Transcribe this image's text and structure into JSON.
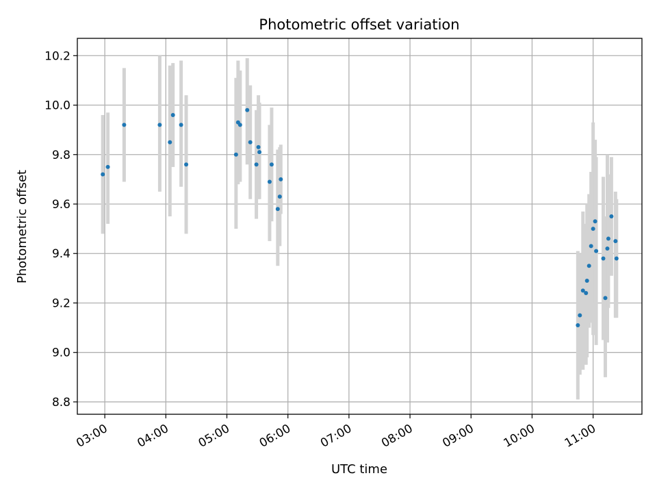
{
  "chart_data": {
    "type": "scatter",
    "title": "Photometric offset variation",
    "xlabel": "UTC time",
    "ylabel": "Photometric offset",
    "xlim": [
      "02:33",
      "11:48"
    ],
    "ylim": [
      8.75,
      10.27
    ],
    "x_ticks": [
      "03:00",
      "04:00",
      "05:00",
      "06:00",
      "07:00",
      "08:00",
      "09:00",
      "10:00",
      "11:00"
    ],
    "y_ticks": [
      8.8,
      9.0,
      9.2,
      9.4,
      9.6,
      9.8,
      10.0,
      10.2
    ],
    "grid": true,
    "marker_color": "#1f77b4",
    "errorbar_color": "#d3d3d3",
    "series": [
      {
        "points": [
          {
            "x": "02:58",
            "y": 9.72,
            "yerr_low": 9.48,
            "yerr_high": 9.96
          },
          {
            "x": "03:03",
            "y": 9.75,
            "yerr_low": 9.52,
            "yerr_high": 9.97
          },
          {
            "x": "03:19",
            "y": 9.92,
            "yerr_low": 9.69,
            "yerr_high": 10.15
          },
          {
            "x": "03:54",
            "y": 9.92,
            "yerr_low": 9.65,
            "yerr_high": 10.2
          },
          {
            "x": "04:04",
            "y": 9.85,
            "yerr_low": 9.55,
            "yerr_high": 10.16
          },
          {
            "x": "04:07",
            "y": 9.96,
            "yerr_low": 9.75,
            "yerr_high": 10.17
          },
          {
            "x": "04:15",
            "y": 9.92,
            "yerr_low": 9.67,
            "yerr_high": 10.18
          },
          {
            "x": "04:20",
            "y": 9.76,
            "yerr_low": 9.48,
            "yerr_high": 10.04
          },
          {
            "x": "05:09",
            "y": 9.8,
            "yerr_low": 9.5,
            "yerr_high": 10.11
          },
          {
            "x": "05:11",
            "y": 9.93,
            "yerr_low": 9.68,
            "yerr_high": 10.18
          },
          {
            "x": "05:13",
            "y": 9.92,
            "yerr_low": 9.69,
            "yerr_high": 10.14
          },
          {
            "x": "05:20",
            "y": 9.98,
            "yerr_low": 9.76,
            "yerr_high": 10.19
          },
          {
            "x": "05:23",
            "y": 9.85,
            "yerr_low": 9.62,
            "yerr_high": 10.08
          },
          {
            "x": "05:29",
            "y": 9.76,
            "yerr_low": 9.54,
            "yerr_high": 9.98
          },
          {
            "x": "05:31",
            "y": 9.83,
            "yerr_low": 9.62,
            "yerr_high": 10.04
          },
          {
            "x": "05:32",
            "y": 9.81,
            "yerr_low": 9.62,
            "yerr_high": 10.01
          },
          {
            "x": "05:42",
            "y": 9.69,
            "yerr_low": 9.45,
            "yerr_high": 9.92
          },
          {
            "x": "05:44",
            "y": 9.76,
            "yerr_low": 9.53,
            "yerr_high": 9.99
          },
          {
            "x": "05:50",
            "y": 9.58,
            "yerr_low": 9.35,
            "yerr_high": 9.82
          },
          {
            "x": "05:52",
            "y": 9.63,
            "yerr_low": 9.43,
            "yerr_high": 9.83
          },
          {
            "x": "05:53",
            "y": 9.7,
            "yerr_low": 9.56,
            "yerr_high": 9.84
          },
          {
            "x": "10:45",
            "y": 9.11,
            "yerr_low": 8.81,
            "yerr_high": 9.41
          },
          {
            "x": "10:47",
            "y": 9.15,
            "yerr_low": 8.91,
            "yerr_high": 9.4
          },
          {
            "x": "10:50",
            "y": 9.25,
            "yerr_low": 8.93,
            "yerr_high": 9.57
          },
          {
            "x": "10:53",
            "y": 9.24,
            "yerr_low": 8.95,
            "yerr_high": 9.52
          },
          {
            "x": "10:54",
            "y": 9.29,
            "yerr_low": 8.98,
            "yerr_high": 9.6
          },
          {
            "x": "10:56",
            "y": 9.35,
            "yerr_low": 9.1,
            "yerr_high": 9.64
          },
          {
            "x": "10:58",
            "y": 9.43,
            "yerr_low": 9.12,
            "yerr_high": 9.73
          },
          {
            "x": "11:00",
            "y": 9.5,
            "yerr_low": 9.07,
            "yerr_high": 9.93
          },
          {
            "x": "11:02",
            "y": 9.53,
            "yerr_low": 9.2,
            "yerr_high": 9.86
          },
          {
            "x": "11:03",
            "y": 9.41,
            "yerr_low": 9.03,
            "yerr_high": 9.79
          },
          {
            "x": "11:10",
            "y": 9.38,
            "yerr_low": 9.05,
            "yerr_high": 9.71
          },
          {
            "x": "11:12",
            "y": 9.22,
            "yerr_low": 8.9,
            "yerr_high": 9.55
          },
          {
            "x": "11:14",
            "y": 9.42,
            "yerr_low": 9.04,
            "yerr_high": 9.8
          },
          {
            "x": "11:15",
            "y": 9.46,
            "yerr_low": 9.18,
            "yerr_high": 9.72
          },
          {
            "x": "11:18",
            "y": 9.55,
            "yerr_low": 9.31,
            "yerr_high": 9.79
          },
          {
            "x": "11:22",
            "y": 9.45,
            "yerr_low": 9.14,
            "yerr_high": 9.65
          },
          {
            "x": "11:23",
            "y": 9.38,
            "yerr_low": 9.14,
            "yerr_high": 9.62
          }
        ]
      }
    ]
  }
}
